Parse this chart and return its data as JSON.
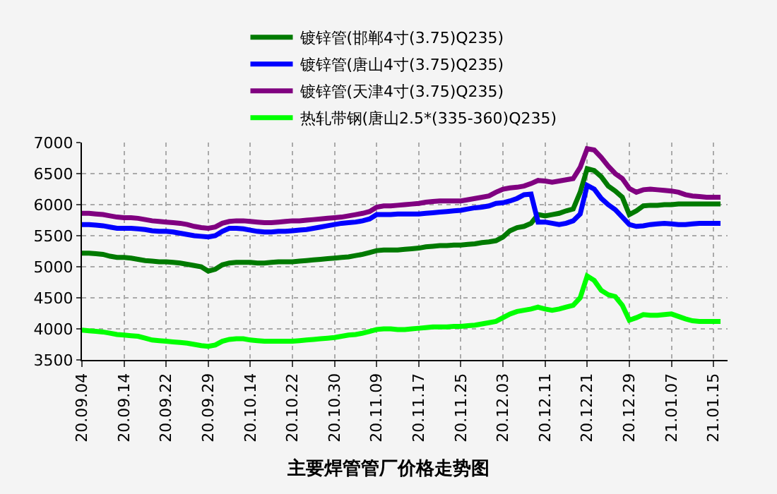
{
  "chart_data": {
    "type": "line",
    "title": "主要焊管管厂价格走势图",
    "categories": [
      "20.09.04",
      null,
      null,
      null,
      null,
      null,
      "20.09.14",
      null,
      null,
      null,
      null,
      null,
      "20.09.22",
      null,
      null,
      null,
      null,
      null,
      "20.09.29",
      null,
      null,
      null,
      null,
      null,
      "20.10.14",
      null,
      null,
      null,
      null,
      null,
      "20.10.22",
      null,
      null,
      null,
      null,
      null,
      "20.10.30",
      null,
      null,
      null,
      null,
      null,
      "20.11.09",
      null,
      null,
      null,
      null,
      null,
      "20.11.17",
      null,
      null,
      null,
      null,
      null,
      "20.11.25",
      null,
      null,
      null,
      null,
      null,
      "20.12.03",
      null,
      null,
      null,
      null,
      null,
      "20.12.11",
      null,
      null,
      null,
      null,
      null,
      "20.12.21",
      null,
      null,
      null,
      null,
      null,
      "20.12.29",
      null,
      null,
      null,
      null,
      null,
      "21.01.07",
      null,
      null,
      null,
      null,
      null,
      "21.01.15",
      null
    ],
    "ylim": [
      3500,
      7000
    ],
    "yticks": [
      3500,
      4000,
      4500,
      5000,
      5500,
      6000,
      6500,
      7000
    ],
    "grid": true,
    "legend": "top",
    "marker": "none",
    "line_style": "solid",
    "series": [
      {
        "name": "镀锌管(邯郸4寸(3.75)Q235)",
        "color": "#007a00",
        "values": [
          5220,
          5220,
          5210,
          5200,
          5170,
          5150,
          5150,
          5140,
          5120,
          5100,
          5090,
          5080,
          5080,
          5070,
          5060,
          5040,
          5020,
          5000,
          4930,
          4960,
          5030,
          5060,
          5070,
          5070,
          5070,
          5060,
          5060,
          5070,
          5080,
          5080,
          5080,
          5090,
          5100,
          5110,
          5120,
          5130,
          5140,
          5150,
          5160,
          5180,
          5200,
          5230,
          5260,
          5270,
          5270,
          5270,
          5280,
          5290,
          5300,
          5320,
          5330,
          5340,
          5340,
          5350,
          5350,
          5360,
          5370,
          5390,
          5400,
          5420,
          5480,
          5580,
          5630,
          5650,
          5700,
          5840,
          5820,
          5840,
          5860,
          5900,
          5930,
          6200,
          6580,
          6550,
          6450,
          6300,
          6220,
          6120,
          5840,
          5900,
          5980,
          5990,
          5990,
          6000,
          6000,
          6010,
          6010,
          6010,
          6010,
          6010,
          6010,
          6010
        ]
      },
      {
        "name": "镀锌管(唐山4寸(3.75)Q235)",
        "color": "#0000ff",
        "values": [
          5680,
          5680,
          5670,
          5660,
          5640,
          5620,
          5620,
          5620,
          5610,
          5600,
          5580,
          5570,
          5570,
          5560,
          5540,
          5520,
          5500,
          5490,
          5480,
          5500,
          5570,
          5620,
          5620,
          5610,
          5590,
          5570,
          5560,
          5560,
          5570,
          5570,
          5580,
          5590,
          5600,
          5620,
          5640,
          5660,
          5680,
          5700,
          5710,
          5720,
          5740,
          5770,
          5840,
          5840,
          5840,
          5850,
          5850,
          5850,
          5850,
          5860,
          5870,
          5880,
          5890,
          5900,
          5910,
          5930,
          5950,
          5960,
          5980,
          6020,
          6030,
          6060,
          6100,
          6160,
          6170,
          5720,
          5720,
          5700,
          5680,
          5700,
          5740,
          5850,
          6310,
          6250,
          6100,
          6000,
          5920,
          5800,
          5680,
          5650,
          5660,
          5680,
          5690,
          5700,
          5690,
          5680,
          5680,
          5690,
          5700,
          5700,
          5700,
          5700
        ]
      },
      {
        "name": "镀锌管(天津4寸(3.75)Q235)",
        "color": "#800080",
        "values": [
          5860,
          5860,
          5850,
          5840,
          5820,
          5800,
          5790,
          5790,
          5780,
          5760,
          5740,
          5730,
          5720,
          5710,
          5700,
          5680,
          5650,
          5630,
          5620,
          5640,
          5700,
          5730,
          5740,
          5740,
          5730,
          5720,
          5710,
          5710,
          5720,
          5730,
          5740,
          5740,
          5750,
          5760,
          5770,
          5780,
          5790,
          5800,
          5820,
          5840,
          5860,
          5890,
          5960,
          5980,
          5980,
          5990,
          6000,
          6010,
          6020,
          6040,
          6050,
          6060,
          6060,
          6060,
          6060,
          6080,
          6100,
          6120,
          6140,
          6200,
          6250,
          6270,
          6280,
          6300,
          6340,
          6390,
          6380,
          6360,
          6380,
          6400,
          6420,
          6600,
          6900,
          6880,
          6760,
          6620,
          6500,
          6420,
          6260,
          6200,
          6240,
          6250,
          6240,
          6230,
          6220,
          6200,
          6160,
          6140,
          6130,
          6120,
          6120,
          6120
        ]
      },
      {
        "name": "热轧带钢(唐山2.5*(335-360)Q235)",
        "color": "#00ff00",
        "values": [
          3980,
          3970,
          3960,
          3950,
          3930,
          3910,
          3900,
          3890,
          3880,
          3850,
          3820,
          3810,
          3800,
          3790,
          3780,
          3770,
          3750,
          3730,
          3720,
          3740,
          3800,
          3830,
          3840,
          3840,
          3820,
          3810,
          3800,
          3800,
          3800,
          3800,
          3800,
          3810,
          3820,
          3830,
          3840,
          3850,
          3860,
          3880,
          3900,
          3910,
          3930,
          3960,
          3990,
          4000,
          4000,
          3990,
          3990,
          4000,
          4010,
          4020,
          4030,
          4030,
          4030,
          4040,
          4040,
          4050,
          4060,
          4080,
          4100,
          4120,
          4180,
          4240,
          4280,
          4300,
          4320,
          4350,
          4320,
          4300,
          4320,
          4350,
          4380,
          4500,
          4850,
          4780,
          4620,
          4550,
          4520,
          4380,
          4140,
          4180,
          4230,
          4220,
          4220,
          4230,
          4240,
          4200,
          4160,
          4130,
          4120,
          4120,
          4120,
          4120
        ]
      }
    ]
  }
}
